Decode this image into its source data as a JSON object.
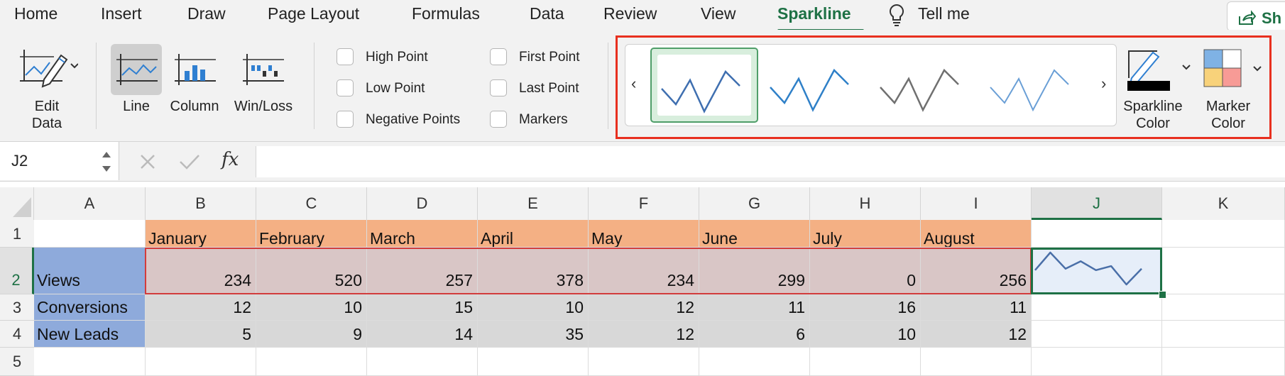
{
  "tabs": [
    "Home",
    "Insert",
    "Draw",
    "Page Layout",
    "Formulas",
    "Data",
    "Review",
    "View",
    "Sparkline",
    "Tell me"
  ],
  "active_tab": "Sparkline",
  "share_label": "Sh",
  "ribbon": {
    "edit_data": [
      "Edit",
      "Data"
    ],
    "types": [
      "Line",
      "Column",
      "Win/Loss"
    ],
    "active_type": "Line",
    "checks_left": [
      "High Point",
      "Low Point",
      "Negative Points"
    ],
    "checks_right": [
      "First Point",
      "Last Point",
      "Markers"
    ],
    "sparkline_color": [
      "Sparkline",
      "Color"
    ],
    "marker_color": [
      "Marker",
      "Color"
    ],
    "gallery_colors": [
      "#3f6fb0",
      "#2f80c8",
      "#707070",
      "#6a9fd6"
    ],
    "accent": "#1e7145",
    "highlight": "#e8301f"
  },
  "formula_bar": {
    "name_box": "J2",
    "fx": "fx",
    "cancel_icon": "x-icon",
    "enter_icon": "check-icon"
  },
  "columns": [
    "A",
    "B",
    "C",
    "D",
    "E",
    "F",
    "G",
    "H",
    "I",
    "J",
    "K"
  ],
  "selected_column": "J",
  "rows": [
    "1",
    "2",
    "3",
    "4",
    "5"
  ],
  "selected_row": "2",
  "sheet": {
    "months": [
      "January",
      "February",
      "March",
      "April",
      "May",
      "June",
      "July",
      "August"
    ],
    "data_rows": [
      {
        "label": "Views",
        "values": [
          "234",
          "520",
          "257",
          "378",
          "234",
          "299",
          "0",
          "256"
        ]
      },
      {
        "label": "Conversions",
        "values": [
          "12",
          "10",
          "15",
          "10",
          "12",
          "11",
          "16",
          "11"
        ]
      },
      {
        "label": "New Leads",
        "values": [
          "5",
          "9",
          "14",
          "35",
          "12",
          "6",
          "10",
          "12"
        ]
      }
    ],
    "sparkline_values": [
      234,
      520,
      257,
      378,
      234,
      299,
      0,
      256
    ],
    "colors": {
      "header": "#f4b084",
      "label": "#8eaadb",
      "views": "#d9c6c6",
      "other": "#d8d8d8",
      "sparkline": "#4a6fa8"
    }
  }
}
